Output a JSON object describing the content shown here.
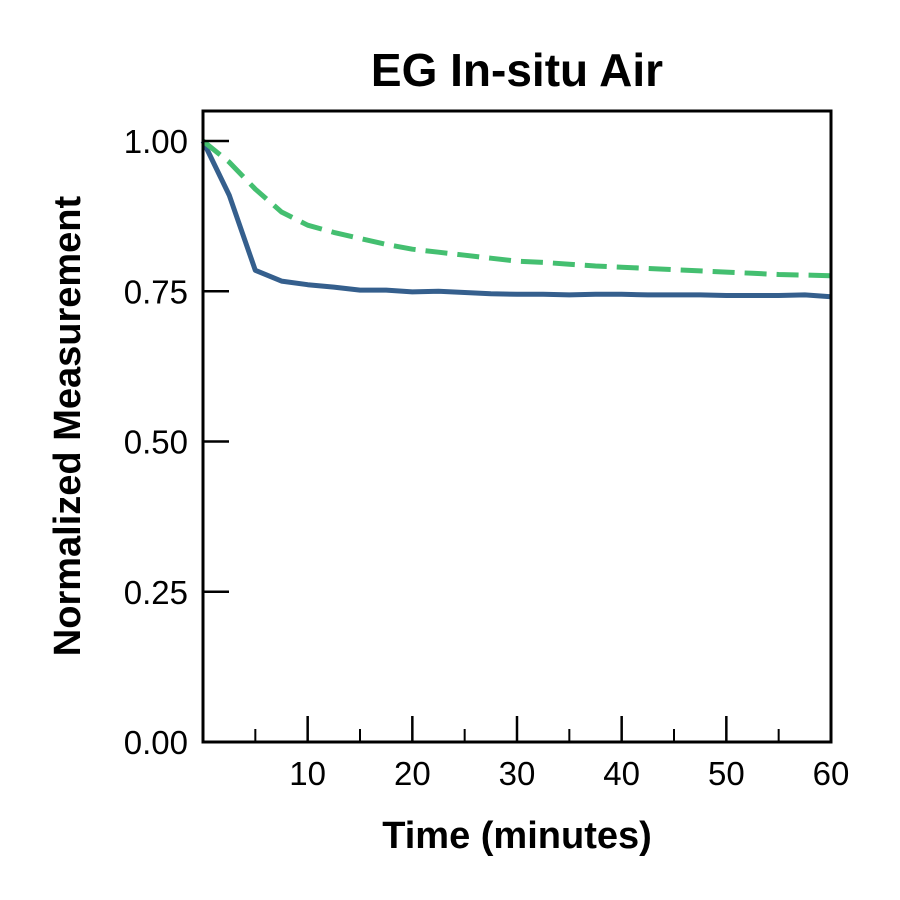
{
  "chart_data": {
    "type": "line",
    "title": "EG In-situ Air",
    "xlabel": "Time (minutes)",
    "ylabel": "Normalized Measurement",
    "xlim": [
      0,
      60
    ],
    "ylim": [
      0,
      1.05
    ],
    "xticks_major": [
      10,
      20,
      30,
      40,
      50,
      60
    ],
    "xtick_labels": [
      "10",
      "20",
      "30",
      "40",
      "50",
      "60"
    ],
    "xticks_minor": [
      5,
      15,
      25,
      35,
      45,
      55
    ],
    "yticks": [
      0.0,
      0.25,
      0.5,
      0.75,
      1.0
    ],
    "ytick_labels": [
      "0.00",
      "0.25",
      "0.50",
      "0.75",
      "1.00"
    ],
    "grid": false,
    "legend": false,
    "series": [
      {
        "style": "solid",
        "color": "#355f8d",
        "x": [
          0,
          2.5,
          5,
          7.5,
          10,
          12.5,
          15,
          17.5,
          20,
          22.5,
          25,
          27.5,
          30,
          32.5,
          35,
          37.5,
          40,
          42.5,
          45,
          47.5,
          50,
          52.5,
          55,
          57.5,
          60
        ],
        "y": [
          1.0,
          0.91,
          0.785,
          0.767,
          0.761,
          0.757,
          0.752,
          0.752,
          0.749,
          0.75,
          0.748,
          0.746,
          0.745,
          0.745,
          0.744,
          0.745,
          0.745,
          0.744,
          0.744,
          0.744,
          0.743,
          0.743,
          0.743,
          0.744,
          0.741
        ]
      },
      {
        "style": "dashed",
        "color": "#44bf70",
        "x": [
          0,
          2.5,
          5,
          7.5,
          10,
          12.5,
          15,
          17.5,
          20,
          22.5,
          25,
          27.5,
          30,
          32.5,
          35,
          37.5,
          40,
          42.5,
          45,
          47.5,
          50,
          52.5,
          55,
          57.5,
          60
        ],
        "y": [
          1.0,
          0.965,
          0.92,
          0.882,
          0.86,
          0.848,
          0.838,
          0.828,
          0.82,
          0.815,
          0.81,
          0.805,
          0.8,
          0.798,
          0.795,
          0.792,
          0.79,
          0.788,
          0.786,
          0.784,
          0.782,
          0.78,
          0.778,
          0.777,
          0.776
        ]
      }
    ]
  }
}
